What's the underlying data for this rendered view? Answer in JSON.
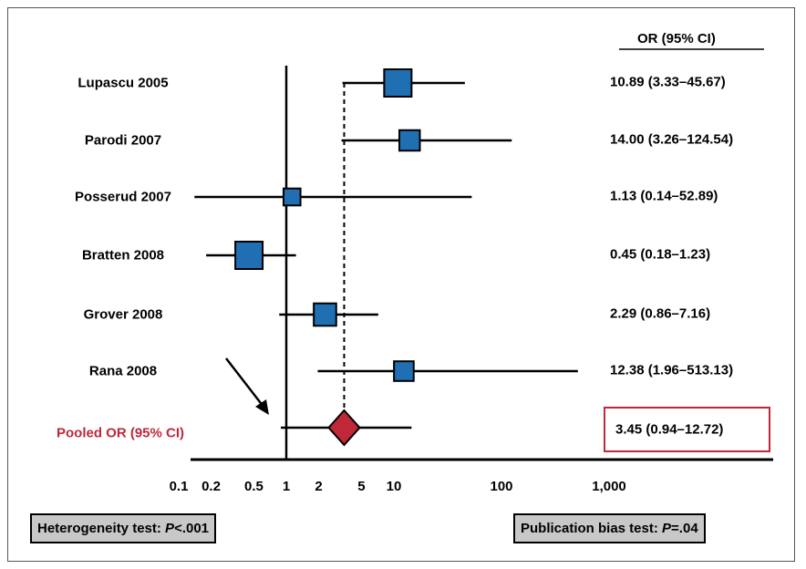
{
  "chart_data": {
    "type": "forest",
    "header": "OR (95% CI)",
    "studies": [
      {
        "name": "Lupascu 2005",
        "or": 10.89,
        "lo": 3.33,
        "hi": 45.67,
        "ci_text": "10.89 (3.33–45.67)",
        "weight": 1.0
      },
      {
        "name": "Parodi 2007",
        "or": 14.0,
        "lo": 3.26,
        "hi": 124.54,
        "ci_text": "14.00 (3.26–124.54)",
        "weight": 0.75
      },
      {
        "name": "Posserud 2007",
        "or": 1.13,
        "lo": 0.14,
        "hi": 52.89,
        "ci_text": "1.13 (0.14–52.89)",
        "weight": 0.62
      },
      {
        "name": "Bratten 2008",
        "or": 0.45,
        "lo": 0.18,
        "hi": 1.23,
        "ci_text": "0.45 (0.18–1.23)",
        "weight": 1.0
      },
      {
        "name": "Grover 2008",
        "or": 2.29,
        "lo": 0.86,
        "hi": 7.16,
        "ci_text": "2.29 (0.86–7.16)",
        "weight": 0.82
      },
      {
        "name": "Rana 2008",
        "or": 12.38,
        "lo": 1.96,
        "hi": 513.13,
        "ci_text": "12.38 (1.96–513.13)",
        "weight": 0.72
      }
    ],
    "pooled": {
      "name": "Pooled OR (95% CI)",
      "or": 3.45,
      "lo": 0.94,
      "hi": 12.72,
      "ci_text": "3.45 (0.94–12.72)"
    },
    "x_scale": "log",
    "xlim": [
      0.1,
      1000
    ],
    "x_ticks": [
      0.1,
      0.2,
      0.5,
      1,
      2,
      5,
      10,
      100,
      1000
    ],
    "x_tick_labels": [
      "0.1",
      "0.2",
      "0.5",
      "1",
      "2",
      "5",
      "10",
      "100",
      "1,000"
    ],
    "null_line": 1
  },
  "tests": {
    "heterogeneity_prefix": "Heterogeneity test: ",
    "heterogeneity_p": "P",
    "heterogeneity_value": "<.001",
    "publication_prefix": "Publication bias test: ",
    "publication_p": "P",
    "publication_value": "=.04"
  },
  "colors": {
    "study_marker": "#1f6fb2",
    "pooled_marker": "#c0283a",
    "pooled_text": "#c0283a"
  }
}
